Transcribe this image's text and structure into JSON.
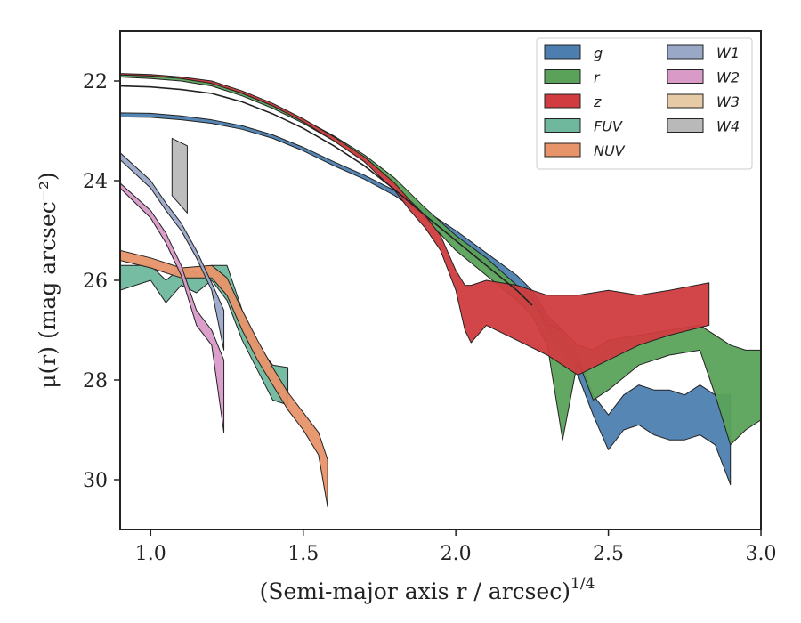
{
  "chart_data": {
    "type": "area",
    "xlabel": "(Semi-major axis r / arcsec)",
    "xlabel_sup": "1/4",
    "ylabel": "μ(r) (mag arcsec⁻²)",
    "xlim": [
      0.9,
      3.0
    ],
    "ylim": [
      31.0,
      21.0
    ],
    "y_inverted": true,
    "x_ticks": [
      1.0,
      1.5,
      2.0,
      2.5,
      3.0
    ],
    "x_tick_labels": [
      "1.0",
      "1.5",
      "2.0",
      "2.5",
      "3.0"
    ],
    "y_ticks": [
      22,
      24,
      26,
      28,
      30
    ],
    "y_tick_labels": [
      "22",
      "24",
      "26",
      "28",
      "30"
    ],
    "grid": false,
    "legend_position": "top-right",
    "legend_columns": 2,
    "series": [
      {
        "name": "g",
        "color": "#4c7fb0",
        "x": [
          0.9,
          1.0,
          1.1,
          1.2,
          1.3,
          1.4,
          1.5,
          1.6,
          1.7,
          1.8,
          1.9,
          2.0,
          2.1,
          2.2,
          2.25,
          2.3,
          2.35,
          2.4,
          2.45,
          2.5,
          2.55,
          2.6,
          2.65,
          2.7,
          2.75,
          2.8,
          2.85,
          2.9
        ],
        "y_low": [
          22.72,
          22.73,
          22.78,
          22.85,
          22.97,
          23.15,
          23.4,
          23.7,
          23.97,
          24.3,
          24.72,
          25.15,
          25.65,
          26.15,
          26.5,
          27.0,
          27.4,
          27.9,
          28.7,
          29.4,
          29.0,
          28.9,
          29.1,
          29.2,
          29.2,
          29.1,
          29.3,
          30.1
        ],
        "y_high": [
          22.64,
          22.65,
          22.7,
          22.78,
          22.9,
          23.08,
          23.33,
          23.62,
          23.89,
          24.2,
          24.6,
          25.0,
          25.45,
          25.9,
          26.2,
          26.7,
          27.0,
          27.5,
          28.3,
          28.7,
          28.3,
          28.1,
          28.2,
          28.2,
          28.3,
          28.1,
          28.3,
          28.3
        ]
      },
      {
        "name": "r",
        "color": "#5aa25a",
        "x": [
          0.9,
          1.0,
          1.1,
          1.2,
          1.3,
          1.4,
          1.5,
          1.6,
          1.7,
          1.8,
          1.9,
          2.0,
          2.1,
          2.2,
          2.25,
          2.3,
          2.35,
          2.4,
          2.45,
          2.5,
          2.6,
          2.7,
          2.8,
          2.85,
          2.9,
          2.95,
          3.0
        ],
        "y_low": [
          21.92,
          21.95,
          22.0,
          22.1,
          22.3,
          22.55,
          22.85,
          23.2,
          23.6,
          24.1,
          24.75,
          25.4,
          25.9,
          26.4,
          26.7,
          27.3,
          29.2,
          27.6,
          28.4,
          28.2,
          27.7,
          27.5,
          27.4,
          28.3,
          29.3,
          29.0,
          28.8
        ],
        "y_high": [
          21.86,
          21.89,
          21.94,
          22.03,
          22.23,
          22.48,
          22.77,
          23.1,
          23.48,
          23.95,
          24.55,
          25.1,
          25.55,
          26.1,
          26.35,
          26.9,
          27.0,
          27.3,
          27.4,
          27.2,
          27.1,
          27.0,
          26.9,
          27.1,
          27.3,
          27.4,
          27.4
        ]
      },
      {
        "name": "z",
        "color": "#d03c3f",
        "x": [
          0.9,
          1.0,
          1.1,
          1.2,
          1.3,
          1.4,
          1.5,
          1.6,
          1.7,
          1.8,
          1.85,
          1.9,
          1.95,
          2.0,
          2.03,
          2.05,
          2.1,
          2.2,
          2.3,
          2.4,
          2.5,
          2.6,
          2.7,
          2.83
        ],
        "y_low": [
          21.88,
          21.9,
          21.95,
          22.05,
          22.25,
          22.5,
          22.82,
          23.2,
          23.62,
          24.2,
          24.6,
          24.95,
          25.4,
          26.2,
          27.0,
          27.25,
          26.9,
          27.2,
          27.5,
          27.9,
          27.6,
          27.3,
          27.1,
          26.9
        ],
        "y_high": [
          21.85,
          21.87,
          21.92,
          22.0,
          22.2,
          22.45,
          22.76,
          23.12,
          23.52,
          24.05,
          24.4,
          24.7,
          25.1,
          25.8,
          26.1,
          26.1,
          26.0,
          26.1,
          26.3,
          26.3,
          26.2,
          26.3,
          26.2,
          26.05
        ]
      },
      {
        "name": "FUV",
        "color": "#6fb89e",
        "x": [
          0.9,
          1.0,
          1.05,
          1.1,
          1.15,
          1.2,
          1.25,
          1.3,
          1.35,
          1.4,
          1.45
        ],
        "y_low": [
          26.2,
          26.0,
          26.45,
          26.1,
          26.25,
          26.0,
          26.4,
          27.2,
          27.8,
          28.4,
          28.5
        ],
        "y_high": [
          25.7,
          25.7,
          26.0,
          25.75,
          25.85,
          25.7,
          25.7,
          26.6,
          27.3,
          27.7,
          27.75
        ]
      },
      {
        "name": "NUV",
        "color": "#e8946a",
        "x": [
          0.9,
          1.0,
          1.1,
          1.2,
          1.25,
          1.3,
          1.35,
          1.4,
          1.45,
          1.5,
          1.55,
          1.58
        ],
        "y_low": [
          25.6,
          25.75,
          25.95,
          25.95,
          26.3,
          27.0,
          27.6,
          28.1,
          28.6,
          29.0,
          29.5,
          30.55
        ],
        "y_high": [
          25.4,
          25.55,
          25.75,
          25.7,
          25.95,
          26.6,
          27.2,
          27.75,
          28.25,
          28.65,
          29.05,
          29.6
        ]
      },
      {
        "name": "W1",
        "color": "#9aa8c8",
        "x": [
          0.9,
          1.0,
          1.05,
          1.1,
          1.15,
          1.2,
          1.24
        ],
        "y_low": [
          23.58,
          24.15,
          24.6,
          25.0,
          25.55,
          26.2,
          27.4
        ],
        "y_high": [
          23.44,
          24.0,
          24.45,
          24.85,
          25.4,
          26.05,
          26.6
        ]
      },
      {
        "name": "W2",
        "color": "#d99ac8",
        "x": [
          0.9,
          1.0,
          1.05,
          1.1,
          1.15,
          1.2,
          1.24
        ],
        "y_low": [
          24.15,
          24.75,
          25.25,
          25.9,
          26.9,
          27.3,
          29.05
        ],
        "y_high": [
          24.05,
          24.6,
          25.05,
          25.7,
          26.6,
          27.0,
          27.6
        ]
      },
      {
        "name": "W3",
        "color": "#e6c9a5",
        "x": [],
        "y_low": [],
        "y_high": []
      },
      {
        "name": "W4",
        "color": "#b9b9b9",
        "x": [
          1.07,
          1.12
        ],
        "y_low": [
          24.3,
          24.65
        ],
        "y_high": [
          23.15,
          23.3
        ]
      }
    ],
    "outline_lines": [
      {
        "color": "#222222",
        "x": [
          0.9,
          1.0,
          1.1,
          1.2,
          1.3,
          1.4,
          1.5,
          1.6,
          1.7,
          1.8,
          1.9,
          2.0,
          2.1,
          2.2,
          2.25
        ],
        "y": [
          22.1,
          22.12,
          22.17,
          22.25,
          22.42,
          22.66,
          22.95,
          23.3,
          23.7,
          24.18,
          24.7,
          25.2,
          25.7,
          26.2,
          26.5
        ]
      }
    ]
  }
}
